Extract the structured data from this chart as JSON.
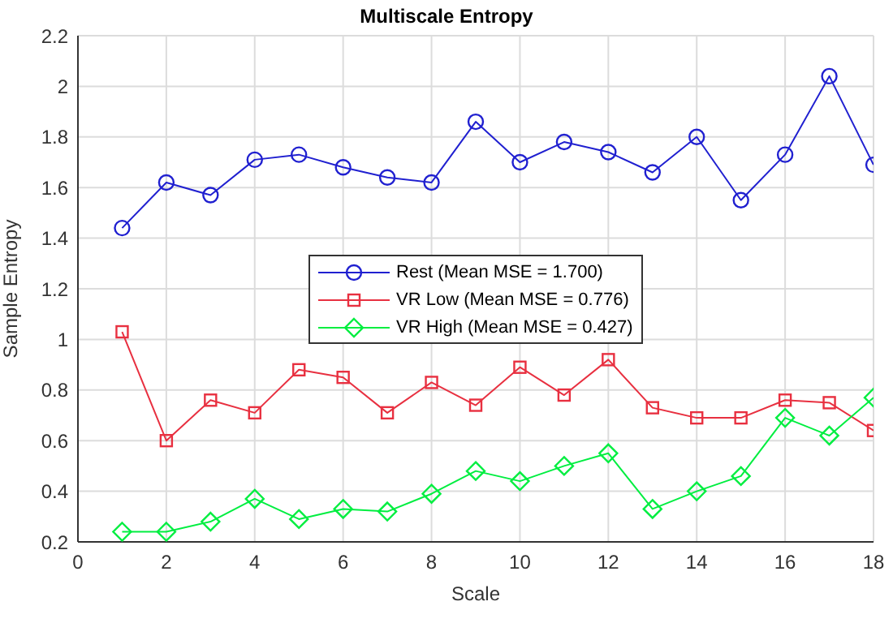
{
  "chart_data": {
    "type": "line",
    "title": "Multiscale Entropy",
    "xlabel": "Scale",
    "ylabel": "Sample Entropy",
    "x": [
      1,
      2,
      3,
      4,
      5,
      6,
      7,
      8,
      9,
      10,
      11,
      12,
      13,
      14,
      15,
      16,
      17,
      18
    ],
    "series": [
      {
        "name": "Rest (Mean MSE = 1.700)",
        "color": "#2020d0",
        "marker": "circle",
        "values": [
          1.44,
          1.62,
          1.57,
          1.71,
          1.73,
          1.68,
          1.64,
          1.62,
          1.86,
          1.7,
          1.78,
          1.74,
          1.66,
          1.8,
          1.55,
          1.73,
          2.04,
          1.69
        ]
      },
      {
        "name": "VR Low (Mean MSE = 0.776)",
        "color": "#e83040",
        "marker": "square",
        "values": [
          1.03,
          0.6,
          0.76,
          0.71,
          0.88,
          0.85,
          0.71,
          0.83,
          0.74,
          0.89,
          0.78,
          0.92,
          0.73,
          0.69,
          0.69,
          0.76,
          0.75,
          0.64
        ]
      },
      {
        "name": "VR High (Mean MSE = 0.427)",
        "color": "#00ee40",
        "marker": "diamond",
        "values": [
          0.24,
          0.24,
          0.28,
          0.37,
          0.29,
          0.33,
          0.32,
          0.39,
          0.48,
          0.44,
          0.5,
          0.55,
          0.33,
          0.4,
          0.46,
          0.69,
          0.62,
          0.77
        ]
      }
    ],
    "xlim": [
      0,
      18
    ],
    "xticks": [
      0,
      2,
      4,
      6,
      8,
      10,
      12,
      14,
      16,
      18
    ],
    "ylim": [
      0.2,
      2.2
    ],
    "yticks": [
      0.2,
      0.4,
      0.6,
      0.8,
      1,
      1.2,
      1.4,
      1.6,
      1.8,
      2,
      2.2
    ],
    "grid": true,
    "legend": "center",
    "line_style": "solid"
  }
}
